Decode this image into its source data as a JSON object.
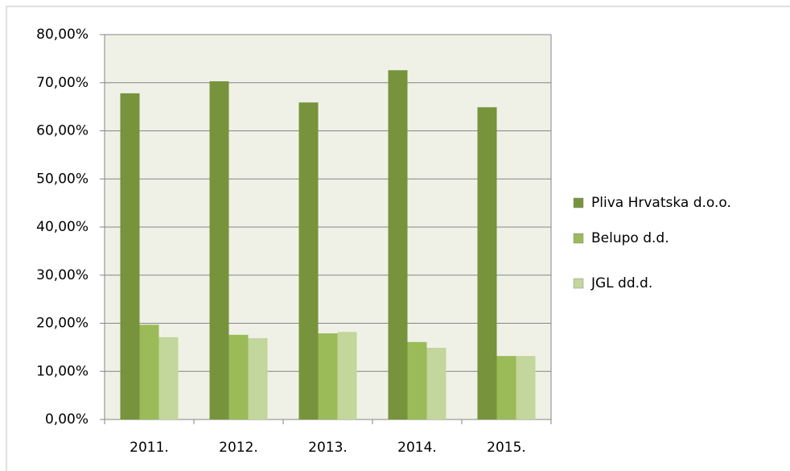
{
  "chart_data": {
    "type": "bar",
    "categories": [
      "2011.",
      "2012.",
      "2013.",
      "2014.",
      "2015."
    ],
    "series": [
      {
        "name": "Pliva Hrvatska d.o.o.",
        "color": "#77933c",
        "values": [
          67.8,
          70.3,
          65.9,
          72.6,
          64.9
        ]
      },
      {
        "name": "Belupo d.d.",
        "color": "#9bbb59",
        "values": [
          19.7,
          17.6,
          17.9,
          16.1,
          13.2
        ]
      },
      {
        "name": "JGL dd.d.",
        "color": "#c3d69b",
        "values": [
          17.1,
          16.9,
          18.2,
          14.9,
          13.2
        ]
      }
    ],
    "ylim": [
      0,
      80
    ],
    "yticks": [
      {
        "value": 0,
        "label": "0,00%"
      },
      {
        "value": 10,
        "label": "10,00%"
      },
      {
        "value": 20,
        "label": "20,00%"
      },
      {
        "value": 30,
        "label": "30,00%"
      },
      {
        "value": 40,
        "label": "40,00%"
      },
      {
        "value": 50,
        "label": "50,00%"
      },
      {
        "value": 60,
        "label": "60,00%"
      },
      {
        "value": 70,
        "label": "70,00%"
      },
      {
        "value": 80,
        "label": "80,00%"
      }
    ],
    "grid": true,
    "legend": "right"
  }
}
